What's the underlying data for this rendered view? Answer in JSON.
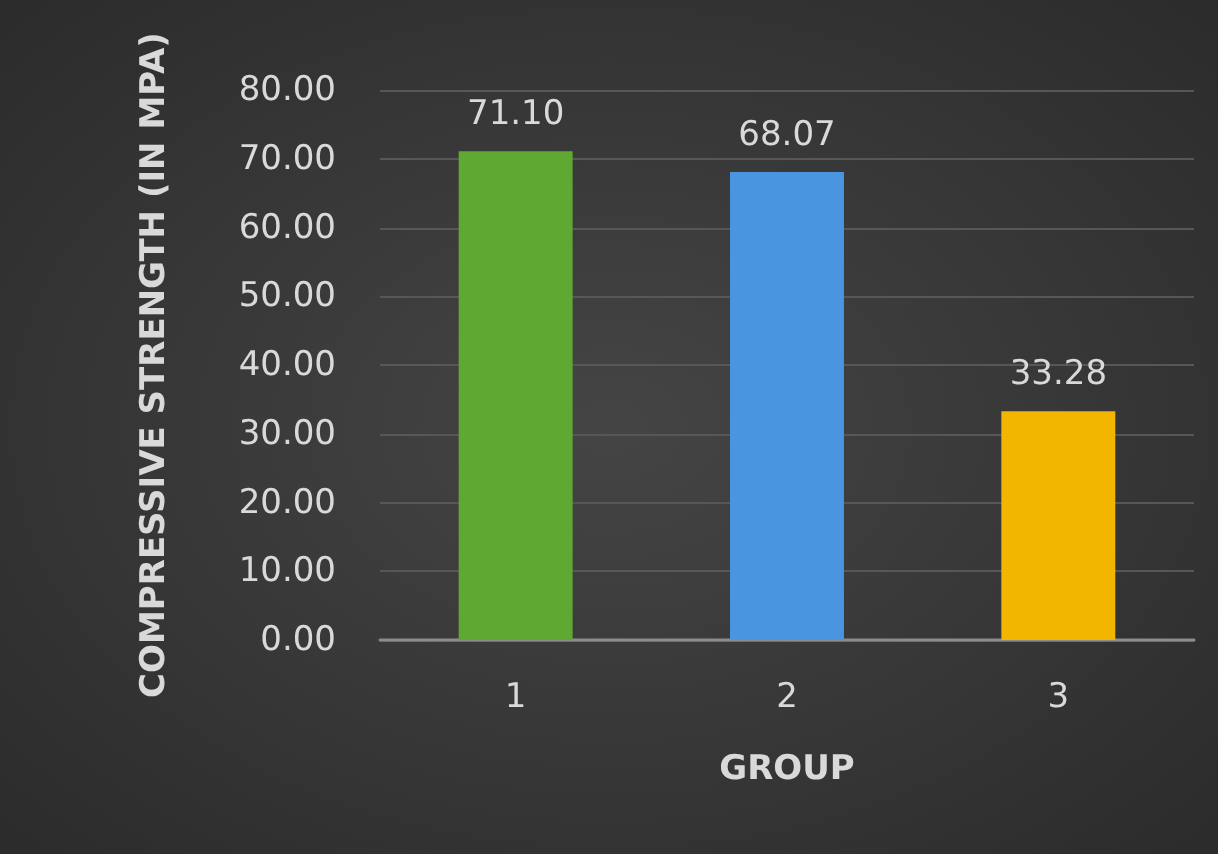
{
  "chart_data": {
    "type": "bar",
    "xlabel": "GROUP",
    "ylabel": "COMPRESSIVE STRENGTH (IN MPA)",
    "categories": [
      "1",
      "2",
      "3"
    ],
    "values": [
      71.1,
      68.07,
      33.28
    ],
    "colors": [
      "#5fa832",
      "#4a95e0",
      "#f2b600"
    ],
    "value_labels": [
      "71.10",
      "68.07",
      "33.28"
    ],
    "ylim": [
      0,
      80
    ],
    "yticks": [
      {
        "value": 0,
        "label": "0.00"
      },
      {
        "value": 10,
        "label": "10.00"
      },
      {
        "value": 20,
        "label": "20.00"
      },
      {
        "value": 30,
        "label": "30.00"
      },
      {
        "value": 40,
        "label": "40.00"
      },
      {
        "value": 50,
        "label": "50.00"
      },
      {
        "value": 60,
        "label": "60.00"
      },
      {
        "value": 70,
        "label": "70.00"
      },
      {
        "value": 80,
        "label": "80.00"
      }
    ],
    "grid": "y"
  }
}
